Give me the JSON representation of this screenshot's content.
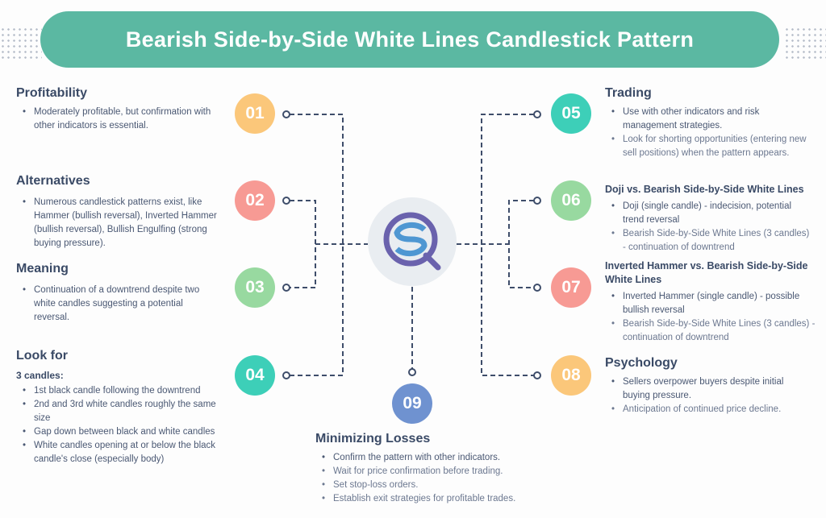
{
  "title": "Bearish Side-by-Side White Lines Candlestick Pattern",
  "colors": {
    "header": "#5bb8a2",
    "yellow": "#fbc77a",
    "salmon": "#f79a94",
    "green": "#98d9a0",
    "teal": "#3dcfb8",
    "blue": "#6f92d0",
    "text": "#3a4a66"
  },
  "logo_icon": "sq-magnifier-logo",
  "sections": [
    {
      "num": "01",
      "heading": "Profitability",
      "bullets": [
        "Moderately profitable, but confirmation with other indicators is essential."
      ]
    },
    {
      "num": "02",
      "heading": "Alternatives",
      "bullets": [
        "Numerous candlestick patterns exist, like Hammer (bullish reversal), Inverted Hammer (bullish reversal), Bullish Engulfing (strong buying pressure)."
      ]
    },
    {
      "num": "03",
      "heading": "Meaning",
      "bullets": [
        "Continuation of a downtrend despite two white candles suggesting a potential reversal."
      ]
    },
    {
      "num": "04",
      "heading": "Look for",
      "subheading": "3 candles:",
      "bullets": [
        "1st black candle following the downtrend",
        "2nd and 3rd white candles roughly the same size",
        "Gap down between black and white candles",
        "White candles opening at or below the black candle's close (especially body)"
      ]
    },
    {
      "num": "05",
      "heading": "Trading",
      "bullets": [
        "Use with other indicators and risk management strategies.",
        "Look for shorting opportunities (entering new sell positions) when the pattern appears."
      ]
    },
    {
      "num": "06",
      "heading": "Doji vs. Bearish Side-by-Side White Lines",
      "bullets": [
        "Doji (single candle) - indecision, potential trend reversal",
        "Bearish Side-by-Side White Lines (3 candles) - continuation of downtrend"
      ]
    },
    {
      "num": "07",
      "heading": "Inverted Hammer vs. Bearish Side-by-Side White Lines",
      "bullets": [
        "Inverted Hammer (single candle) - possible bullish reversal",
        "Bearish Side-by-Side White Lines (3 candles) - continuation of downtrend"
      ]
    },
    {
      "num": "08",
      "heading": "Psychology",
      "bullets": [
        "Sellers overpower buyers despite initial buying pressure.",
        "Anticipation of continued price decline."
      ]
    },
    {
      "num": "09",
      "heading": "Minimizing Losses",
      "bullets": [
        "Confirm the pattern with other indicators.",
        "Wait for price confirmation before trading.",
        "Set stop-loss orders.",
        "Establish exit strategies for profitable trades."
      ]
    }
  ]
}
